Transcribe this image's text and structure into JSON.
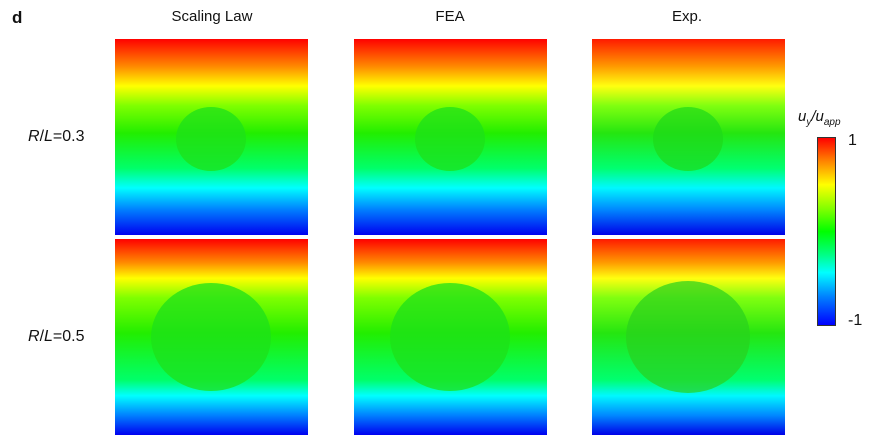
{
  "panel_letter": "d",
  "columns": [
    "Scaling Law",
    "FEA",
    "Exp."
  ],
  "rows": [
    {
      "ratio_var_r": "R",
      "ratio_sep": "/",
      "ratio_var_l": "L",
      "ratio_value": "=0.3"
    },
    {
      "ratio_var_r": "R",
      "ratio_sep": "/",
      "ratio_var_l": "L",
      "ratio_value": "=0.5"
    }
  ],
  "colorbar": {
    "title_main": "u",
    "title_sub_y": "y",
    "title_slash": "/",
    "title_main2": "u",
    "title_sub_app": "app",
    "max_label": "1",
    "min_label": "-1",
    "colormap": [
      "#ff0000",
      "#ff8000",
      "#ffff00",
      "#80ff00",
      "#00ff00",
      "#00ff80",
      "#00ffff",
      "#0080ff",
      "#0000ff"
    ]
  }
}
